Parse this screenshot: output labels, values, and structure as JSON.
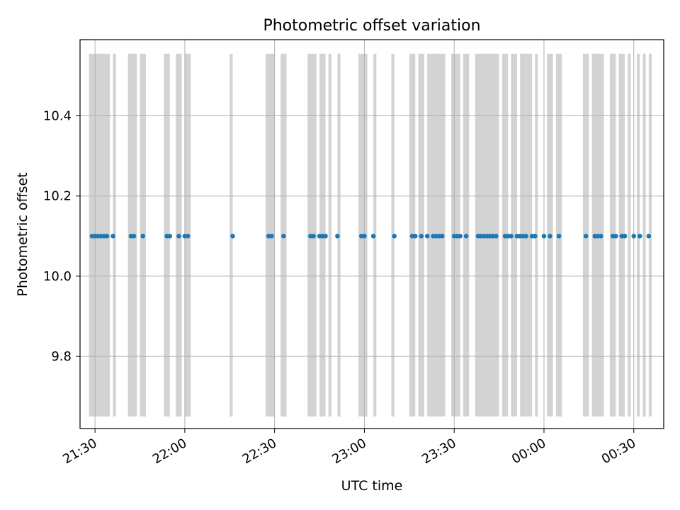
{
  "chart_data": {
    "type": "scatter",
    "title": "Photometric offset variation",
    "xlabel": "UTC time",
    "ylabel": "Photometric offset",
    "xlim": [
      "21:25",
      "00:40"
    ],
    "ylim": [
      9.62,
      10.59
    ],
    "grid": true,
    "x_ticks": [
      "21:30",
      "22:00",
      "22:30",
      "23:00",
      "23:30",
      "00:00",
      "00:30"
    ],
    "y_ticks": [
      "9.8",
      "10.0",
      "10.2",
      "10.4"
    ],
    "colors": {
      "points": "#1f77b4",
      "bands": "#d3d3d3",
      "grid": "#b0b0b0"
    },
    "band_y_range": [
      9.65,
      10.555
    ],
    "bands": [
      [
        "21:28",
        "21:35"
      ],
      [
        "21:36",
        "21:37"
      ],
      [
        "21:41",
        "21:44"
      ],
      [
        "21:45",
        "21:47"
      ],
      [
        "21:53",
        "21:55"
      ],
      [
        "21:57",
        "21:59"
      ],
      [
        "22:00",
        "22:02"
      ],
      [
        "22:15",
        "22:16"
      ],
      [
        "22:27",
        "22:30"
      ],
      [
        "22:32",
        "22:34"
      ],
      [
        "22:41",
        "22:44"
      ],
      [
        "22:45",
        "22:47"
      ],
      [
        "22:48",
        "22:49"
      ],
      [
        "22:51",
        "22:52"
      ],
      [
        "22:58",
        "23:01"
      ],
      [
        "23:03",
        "23:04"
      ],
      [
        "23:09",
        "23:10"
      ],
      [
        "23:15",
        "23:17"
      ],
      [
        "23:18",
        "23:20"
      ],
      [
        "23:21",
        "23:22"
      ],
      [
        "23:22",
        "23:27"
      ],
      [
        "23:29",
        "23:32"
      ],
      [
        "23:33",
        "23:35"
      ],
      [
        "23:37",
        "23:45"
      ],
      [
        "23:46",
        "23:48"
      ],
      [
        "23:49",
        "23:51"
      ],
      [
        "23:52",
        "23:54"
      ],
      [
        "23:54",
        "23:56"
      ],
      [
        "23:57",
        "23:58"
      ],
      [
        "00:01",
        "00:03"
      ],
      [
        "00:04",
        "00:06"
      ],
      [
        "00:13",
        "00:15"
      ],
      [
        "00:16",
        "00:20"
      ],
      [
        "00:22",
        "00:24"
      ],
      [
        "00:25",
        "00:27"
      ],
      [
        "00:28",
        "00:29"
      ],
      [
        "00:31",
        "00:32"
      ],
      [
        "00:33",
        "00:34"
      ],
      [
        "00:35",
        "00:36"
      ]
    ],
    "points": [
      [
        "21:29",
        10.1
      ],
      [
        "21:30",
        10.1
      ],
      [
        "21:31",
        10.1
      ],
      [
        "21:32",
        10.1
      ],
      [
        "21:33",
        10.1
      ],
      [
        "21:34",
        10.1
      ],
      [
        "21:36",
        10.1
      ],
      [
        "21:42",
        10.1
      ],
      [
        "21:43",
        10.1
      ],
      [
        "21:46",
        10.1
      ],
      [
        "21:54",
        10.1
      ],
      [
        "21:55",
        10.1
      ],
      [
        "21:58",
        10.1
      ],
      [
        "22:00",
        10.1
      ],
      [
        "22:01",
        10.1
      ],
      [
        "22:16",
        10.1
      ],
      [
        "22:28",
        10.1
      ],
      [
        "22:29",
        10.1
      ],
      [
        "22:33",
        10.1
      ],
      [
        "22:42",
        10.1
      ],
      [
        "22:43",
        10.1
      ],
      [
        "22:45",
        10.1
      ],
      [
        "22:46",
        10.1
      ],
      [
        "22:47",
        10.1
      ],
      [
        "22:51",
        10.1
      ],
      [
        "22:59",
        10.1
      ],
      [
        "23:00",
        10.1
      ],
      [
        "23:03",
        10.1
      ],
      [
        "23:10",
        10.1
      ],
      [
        "23:16",
        10.1
      ],
      [
        "23:17",
        10.1
      ],
      [
        "23:19",
        10.1
      ],
      [
        "23:21",
        10.1
      ],
      [
        "23:23",
        10.1
      ],
      [
        "23:24",
        10.1
      ],
      [
        "23:25",
        10.1
      ],
      [
        "23:26",
        10.1
      ],
      [
        "23:30",
        10.1
      ],
      [
        "23:31",
        10.1
      ],
      [
        "23:32",
        10.1
      ],
      [
        "23:34",
        10.1
      ],
      [
        "23:38",
        10.1
      ],
      [
        "23:39",
        10.1
      ],
      [
        "23:40",
        10.1
      ],
      [
        "23:41",
        10.1
      ],
      [
        "23:42",
        10.1
      ],
      [
        "23:43",
        10.1
      ],
      [
        "23:44",
        10.1
      ],
      [
        "23:47",
        10.1
      ],
      [
        "23:48",
        10.1
      ],
      [
        "23:49",
        10.1
      ],
      [
        "23:51",
        10.1
      ],
      [
        "23:52",
        10.1
      ],
      [
        "23:53",
        10.1
      ],
      [
        "23:54",
        10.1
      ],
      [
        "23:56",
        10.1
      ],
      [
        "23:57",
        10.1
      ],
      [
        "00:00",
        10.1
      ],
      [
        "00:02",
        10.1
      ],
      [
        "00:05",
        10.1
      ],
      [
        "00:14",
        10.1
      ],
      [
        "00:17",
        10.1
      ],
      [
        "00:18",
        10.1
      ],
      [
        "00:19",
        10.1
      ],
      [
        "00:23",
        10.1
      ],
      [
        "00:24",
        10.1
      ],
      [
        "00:26",
        10.1
      ],
      [
        "00:27",
        10.1
      ],
      [
        "00:30",
        10.1
      ],
      [
        "00:32",
        10.1
      ],
      [
        "00:35",
        10.1
      ]
    ]
  }
}
